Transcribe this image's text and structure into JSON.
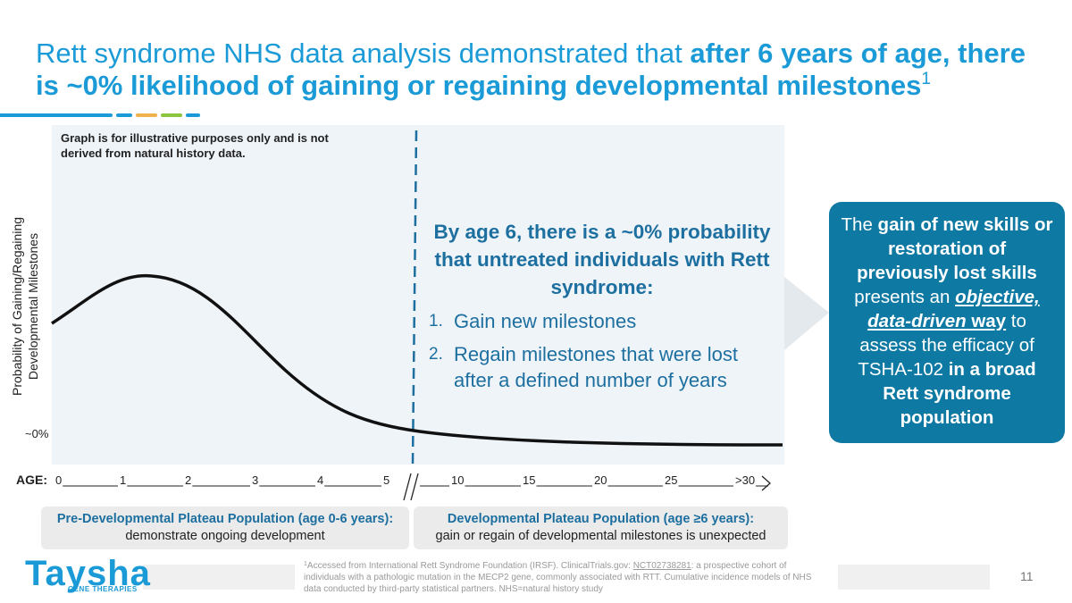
{
  "title": {
    "plain": "Rett syndrome NHS data analysis demonstrated that ",
    "bold": "after 6 years of age, there is ~0% likelihood of gaining or regaining developmental milestones",
    "sup": "1"
  },
  "graph": {
    "note": "Graph is for illustrative purposes only and is not derived from natural history data.",
    "y_label": [
      "Probability of Gaining/Regaining",
      "Developmental Milestones"
    ],
    "zero_label": "~0%",
    "age_label": "AGE:",
    "ages": [
      "0",
      "1",
      "2",
      "3",
      "4",
      "5",
      "10",
      "15",
      "20",
      "25",
      ">30"
    ]
  },
  "callout": {
    "heading": "By age 6, there is a ~0% probability that untreated individuals with Rett syndrome:",
    "items": [
      {
        "number": "1.",
        "text": "Gain new milestones"
      },
      {
        "number": "2.",
        "text": "Regain milestones that were lost after a defined number of years"
      }
    ]
  },
  "side_box": [
    "The ",
    "gain of new skills or restoration of previously lost skills",
    " presents an ",
    "objective, data-driven",
    " way",
    " to assess the efficacy of TSHA-102 ",
    "in a broad Rett syndrome population"
  ],
  "populations": [
    {
      "title": "Pre-Developmental Plateau Population (age 0-6 years):",
      "text": "demonstrate ongoing development"
    },
    {
      "title": "Developmental Plateau Population (age ≥6 years):",
      "text": "gain or regain of developmental milestones is unexpected"
    }
  ],
  "footnote": {
    "sup": "1",
    "before": "Accessed from International Rett Syndrome Foundation (IRSF). ClinicalTrials.gov: ",
    "link": "NCT02738281",
    "after": ": a prospective cohort of individuals with a pathologic mutation in the MECP2 gene, commonly associated with RTT. Cumulative incidence models of NHS data conducted by third-party statistical partners. NHS=natural history study"
  },
  "logo": {
    "name": "Taysha",
    "tagline": "GENE THERAPIES"
  },
  "page_number": "11"
}
